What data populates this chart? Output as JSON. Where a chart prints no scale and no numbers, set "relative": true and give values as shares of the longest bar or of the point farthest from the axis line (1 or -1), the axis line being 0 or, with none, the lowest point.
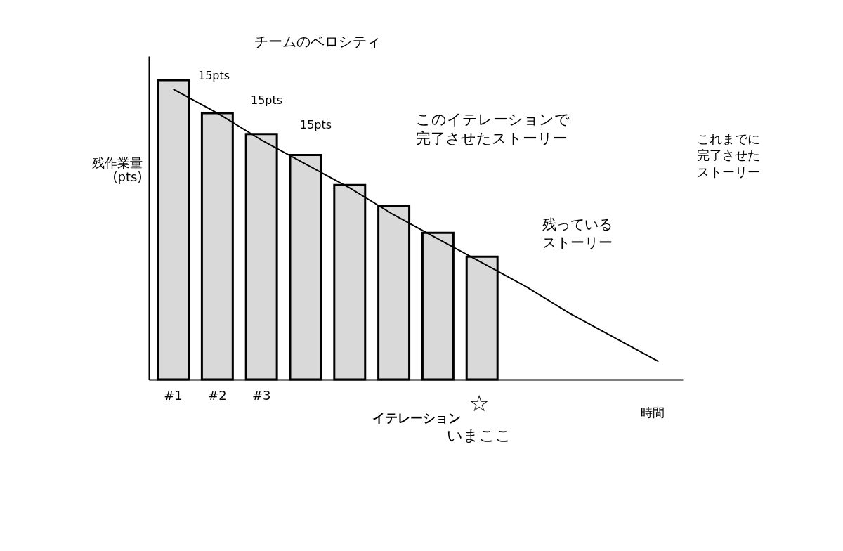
{
  "chart_data": {
    "type": "bar",
    "relative": true,
    "categories": [
      "#1",
      "#2",
      "#3",
      null,
      null,
      null,
      null,
      null,
      null,
      null,
      null,
      null
    ],
    "xlabel": "イテレーション",
    "ylabel": "残作業量\n(pts)",
    "series": [
      {
        "color": "#d9d9d9",
        "values": [
          1.0,
          0.89,
          0.82,
          0.75,
          0.65,
          0.58,
          0.49,
          0.41,
          null,
          null,
          null,
          null
        ]
      },
      {
        "type": "line",
        "color": "#000000",
        "values": [
          0.97,
          0.89,
          0.8,
          0.72,
          0.64,
          0.55,
          0.47,
          0.39,
          0.31,
          0.22,
          0.14,
          0.06
        ]
      }
    ],
    "annotations": [
      "チームのベロシティ",
      "15pts",
      "15pts",
      "15pts",
      "このイテレーションで完了させたストーリー",
      "これまでに完了させたストーリー",
      "残っているストーリー",
      "☆",
      "いまここ",
      "時間"
    ],
    "grid": false,
    "tick_labels": "x"
  }
}
